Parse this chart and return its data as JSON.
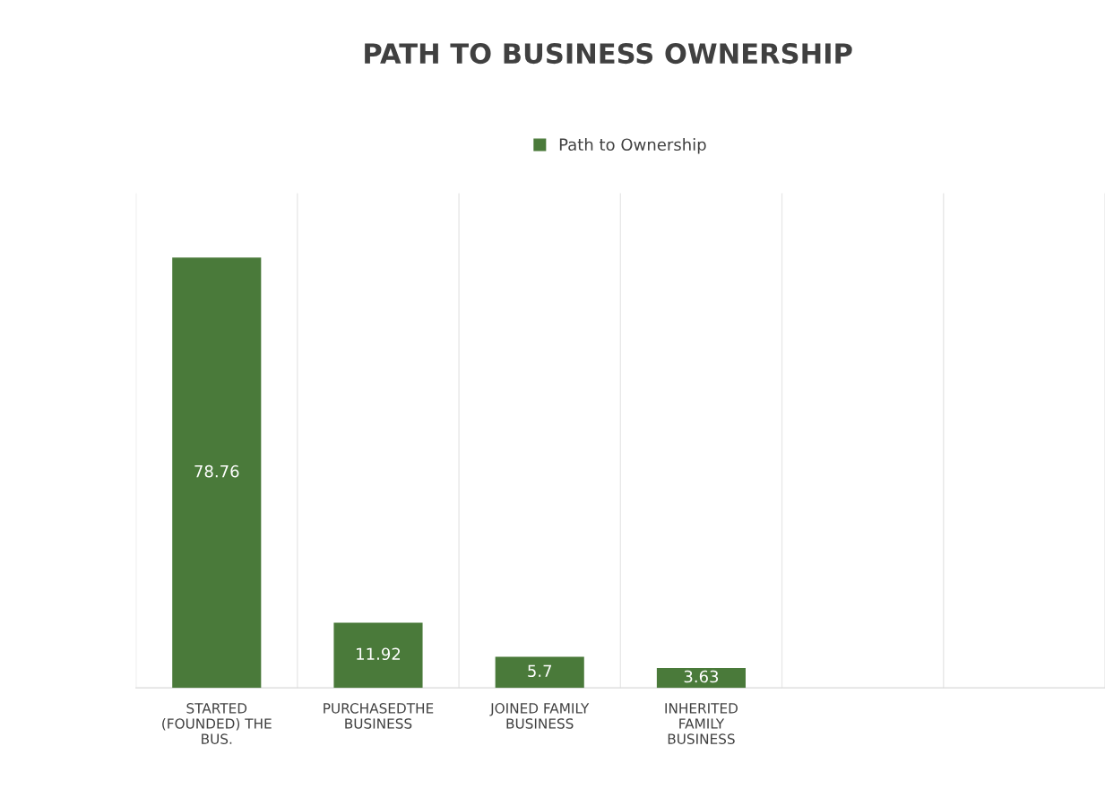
{
  "chart_data": {
    "type": "bar",
    "title": "PATH TO BUSINESS OWNERSHIP",
    "categories": [
      "STARTED\n(FOUNDED) THE\nBUS.",
      "PURCHASEDTHE\nBUSINESS",
      "JOINED FAMILY\nBUSINESS",
      "INHERITED\nFAMILY\nBUSINESS",
      null,
      null
    ],
    "series": [
      {
        "name": "Path to Ownership",
        "color": "#4a7a3a",
        "values": [
          78.76,
          11.92,
          5.7,
          3.63,
          null,
          null
        ]
      }
    ],
    "data_labels": true,
    "legend": "top",
    "grid": "x"
  }
}
